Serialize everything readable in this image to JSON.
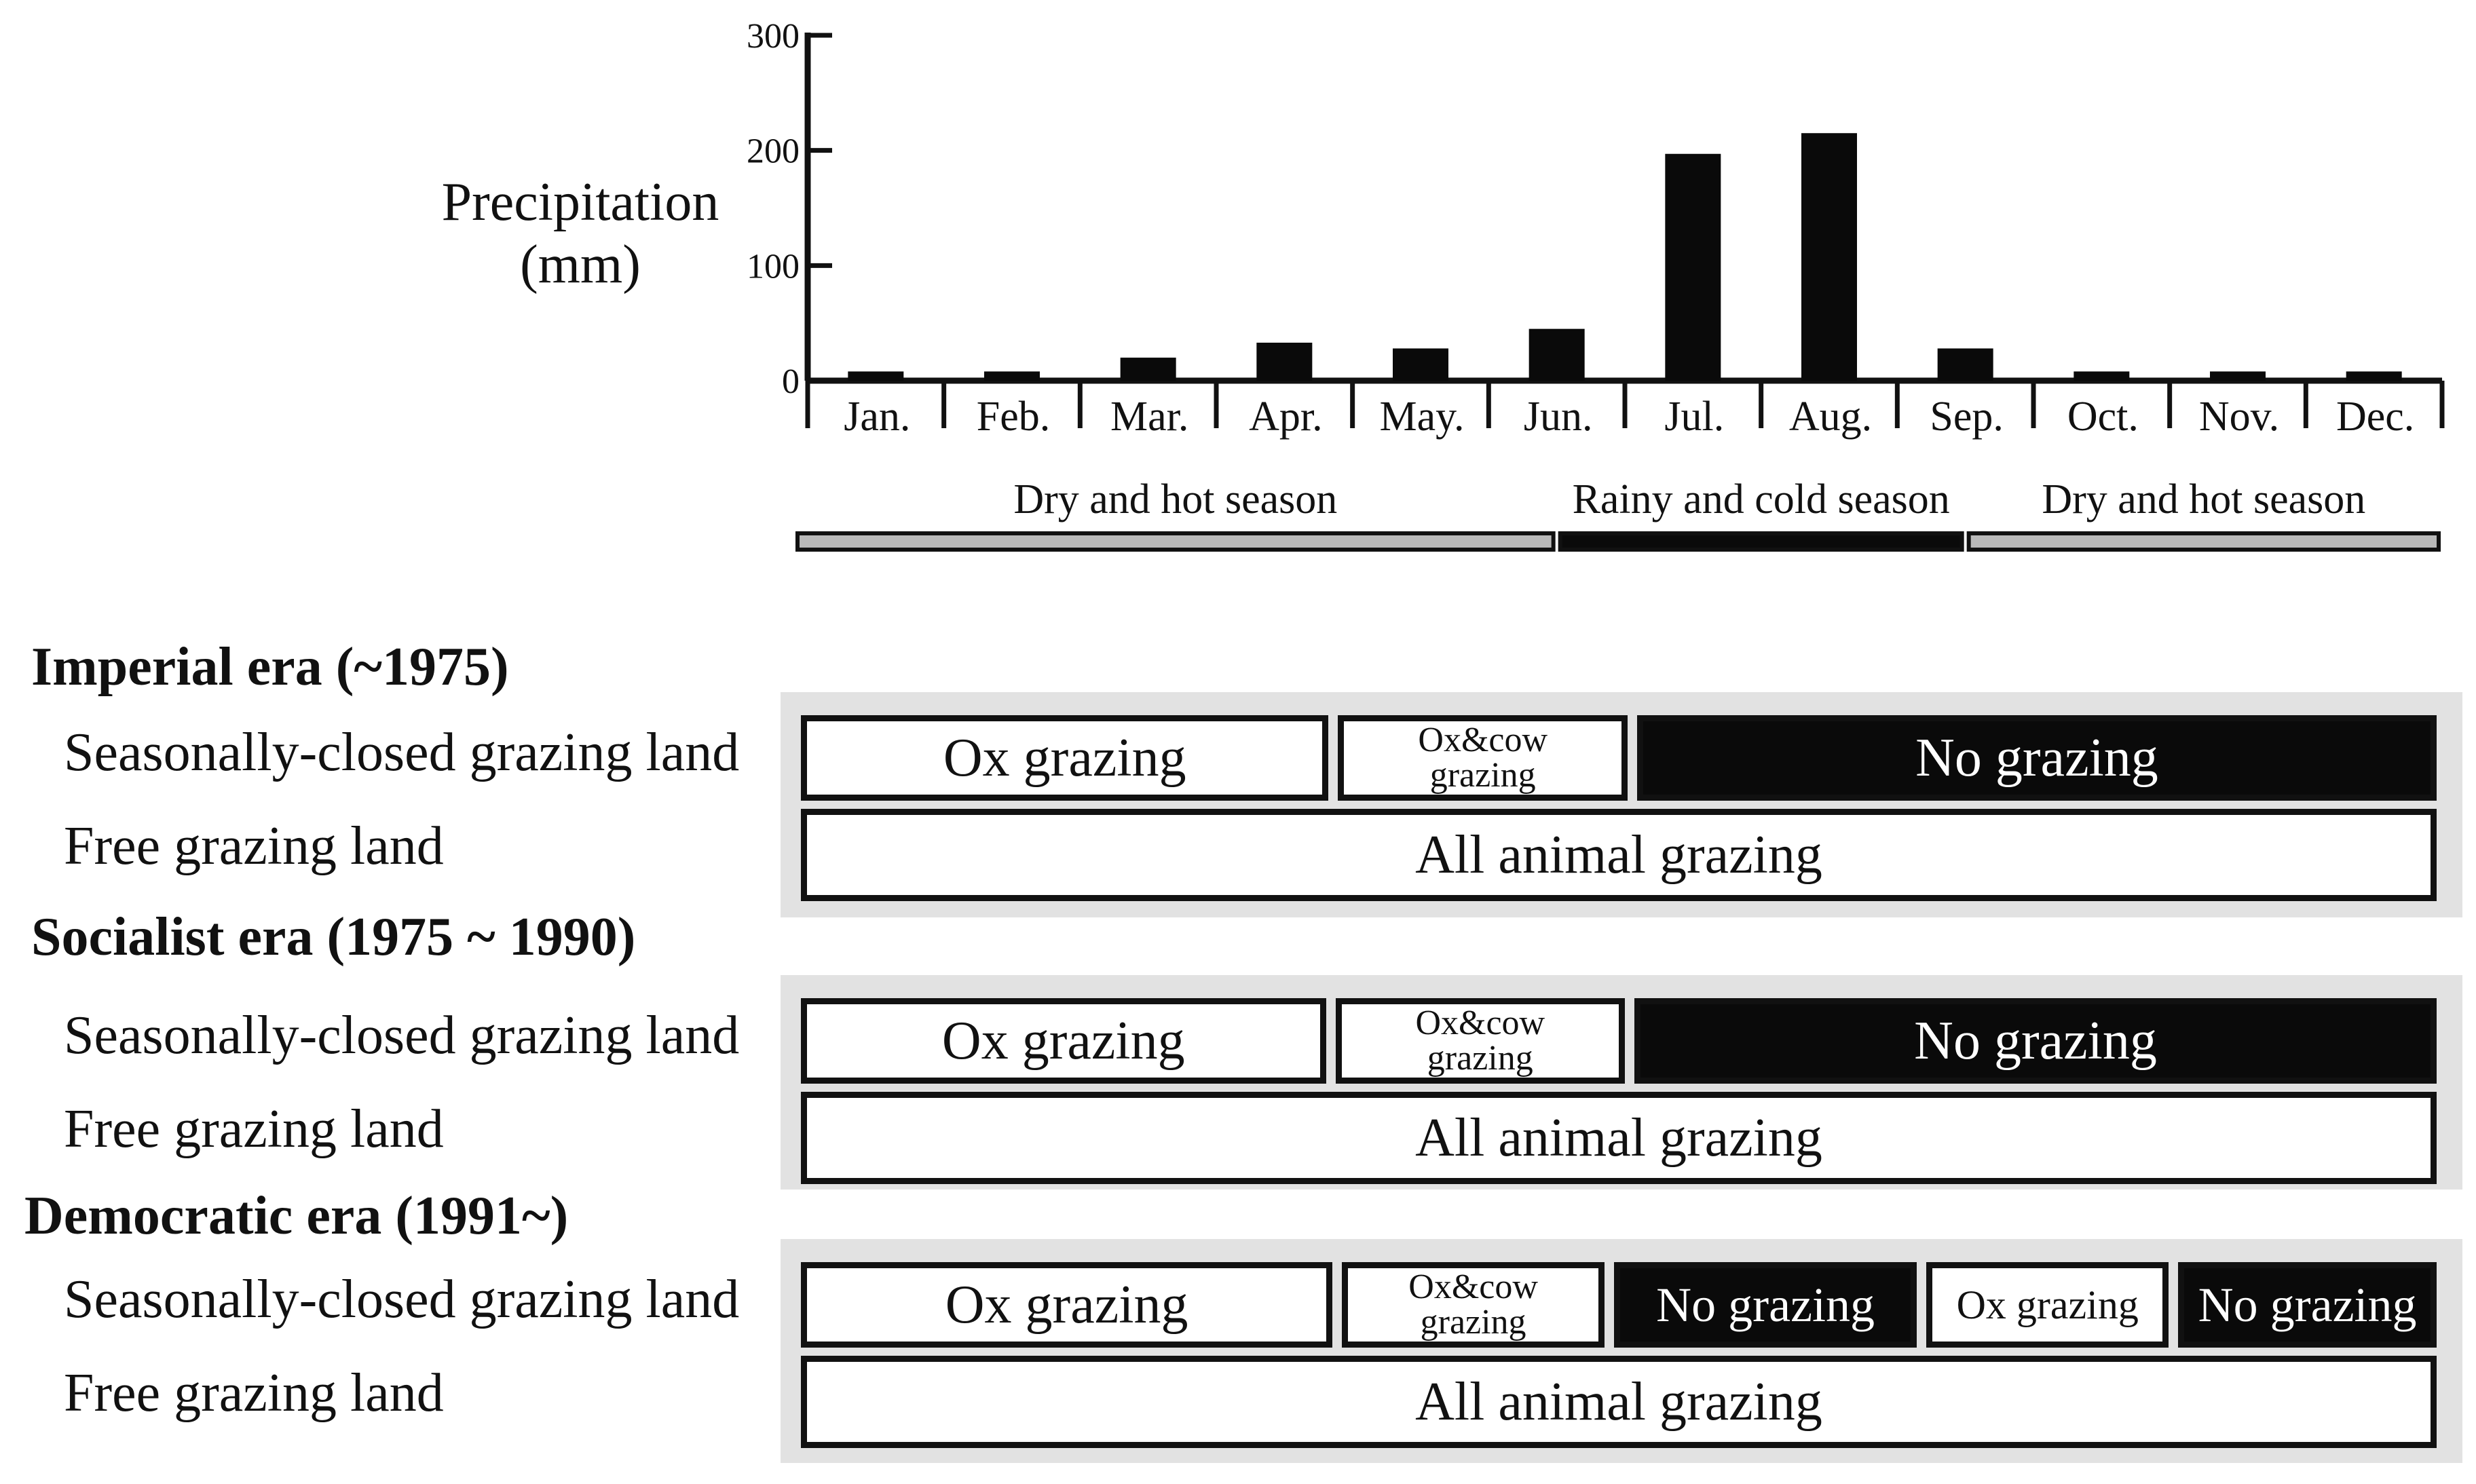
{
  "chart_data": {
    "type": "bar",
    "ylabel": "Precipitation (mm)",
    "ylabel_lines": [
      "Precipitation",
      "(mm)"
    ],
    "categories": [
      "Jan.",
      "Feb.",
      "Mar.",
      "Apr.",
      "May.",
      "Jun.",
      "Jul.",
      "Aug.",
      "Sep.",
      "Oct.",
      "Nov.",
      "Dec."
    ],
    "values": [
      8,
      8,
      20,
      33,
      28,
      45,
      197,
      215,
      28,
      8,
      8,
      8
    ],
    "ylim": [
      0,
      300
    ],
    "yticks": [
      0,
      100,
      200,
      300
    ],
    "bar_color": "#0a0a0a",
    "seasons": [
      {
        "label": "Dry and hot season",
        "start": 1,
        "end": 6.5,
        "color": "#b9b9b9"
      },
      {
        "label": "Rainy and cold season",
        "start": 6.5,
        "end": 9.5,
        "color": "#0a0a0a"
      },
      {
        "label": "Dry and hot season",
        "start": 9.5,
        "end": 13,
        "color": "#b9b9b9"
      }
    ]
  },
  "eras": [
    {
      "title": "Imperial era (~1975)",
      "rows": [
        {
          "label": "Seasonally-closed grazing land",
          "segments": [
            {
              "text": "Ox grazing",
              "style": "white",
              "size": "big"
            },
            {
              "text": "Ox&cow",
              "text2": "grazing",
              "style": "white",
              "size": "tiny"
            },
            {
              "text": "No grazing",
              "style": "black",
              "size": "big"
            }
          ]
        },
        {
          "label": "Free grazing land",
          "segments": [
            {
              "text": "All animal grazing",
              "style": "white",
              "size": "big"
            }
          ]
        }
      ]
    },
    {
      "title": "Socialist era (1975 ~ 1990)",
      "rows": [
        {
          "label": "Seasonally-closed grazing land",
          "segments": [
            {
              "text": "Ox grazing",
              "style": "white",
              "size": "big"
            },
            {
              "text": "Ox&cow",
              "text2": "grazing",
              "style": "white",
              "size": "tiny"
            },
            {
              "text": "No grazing",
              "style": "black",
              "size": "big"
            }
          ]
        },
        {
          "label": "Free grazing land",
          "segments": [
            {
              "text": "All animal grazing",
              "style": "white",
              "size": "big"
            }
          ]
        }
      ]
    },
    {
      "title": "Democratic era (1991~)",
      "rows": [
        {
          "label": "Seasonally-closed grazing land",
          "segments": [
            {
              "text": "Ox grazing",
              "style": "white",
              "size": "big"
            },
            {
              "text": "Ox&cow",
              "text2": "grazing",
              "style": "white",
              "size": "tiny"
            },
            {
              "text": "No grazing",
              "style": "black",
              "size": "mid"
            },
            {
              "text": "Ox grazing",
              "style": "white",
              "size": "sm"
            },
            {
              "text": "No grazing",
              "style": "black",
              "size": "mid"
            }
          ]
        },
        {
          "label": "Free grazing land",
          "segments": [
            {
              "text": "All animal grazing",
              "style": "white",
              "size": "big"
            }
          ]
        }
      ]
    }
  ],
  "colors": {
    "panel": "#e2e2e2",
    "black": "#0a0a0a",
    "white": "#ffffff",
    "dry_bar": "#b9b9b9"
  }
}
